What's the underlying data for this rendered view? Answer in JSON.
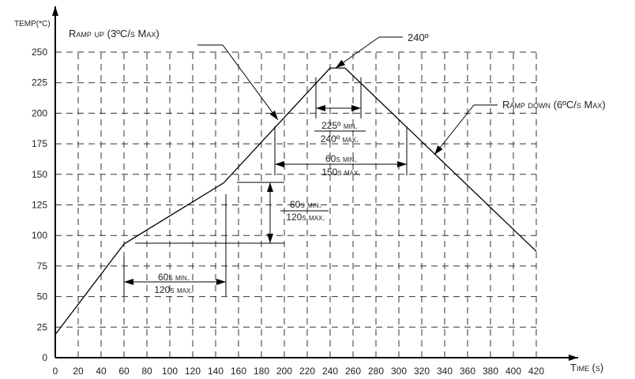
{
  "chart_data": {
    "type": "line",
    "title": "",
    "xlabel": "Time (s)",
    "ylabel": "TEMP(*C)",
    "xlim": [
      0,
      420
    ],
    "ylim": [
      0,
      250
    ],
    "xticks": [
      0,
      20,
      40,
      60,
      80,
      100,
      120,
      140,
      160,
      180,
      200,
      220,
      240,
      260,
      280,
      300,
      320,
      340,
      360,
      380,
      400,
      420
    ],
    "yticks": [
      0,
      25,
      50,
      75,
      100,
      125,
      150,
      175,
      200,
      225,
      250
    ],
    "grid": true,
    "legend": "none",
    "series": [
      {
        "x": [
          0,
          60,
          147,
          240,
          253,
          420
        ],
        "y": [
          19,
          93,
          143,
          237,
          237,
          87
        ]
      }
    ],
    "annotations": {
      "ramp_up": "Ramp up (3ºC/s Max)",
      "peak": "240º",
      "ramp_down": "Ramp down (6ºC/s Max)",
      "peak_window_min": "225º min.",
      "peak_window_max": "240º max.",
      "reflow_min": "60s min.",
      "reflow_max": "150s max.",
      "preheat_temp_min": "60s min.",
      "preheat_temp_max": "120s max.",
      "preheat_time_min": "60s min.",
      "preheat_time_max": "120s max."
    },
    "colors": {
      "line": "#000000",
      "grid": "#333333"
    }
  }
}
